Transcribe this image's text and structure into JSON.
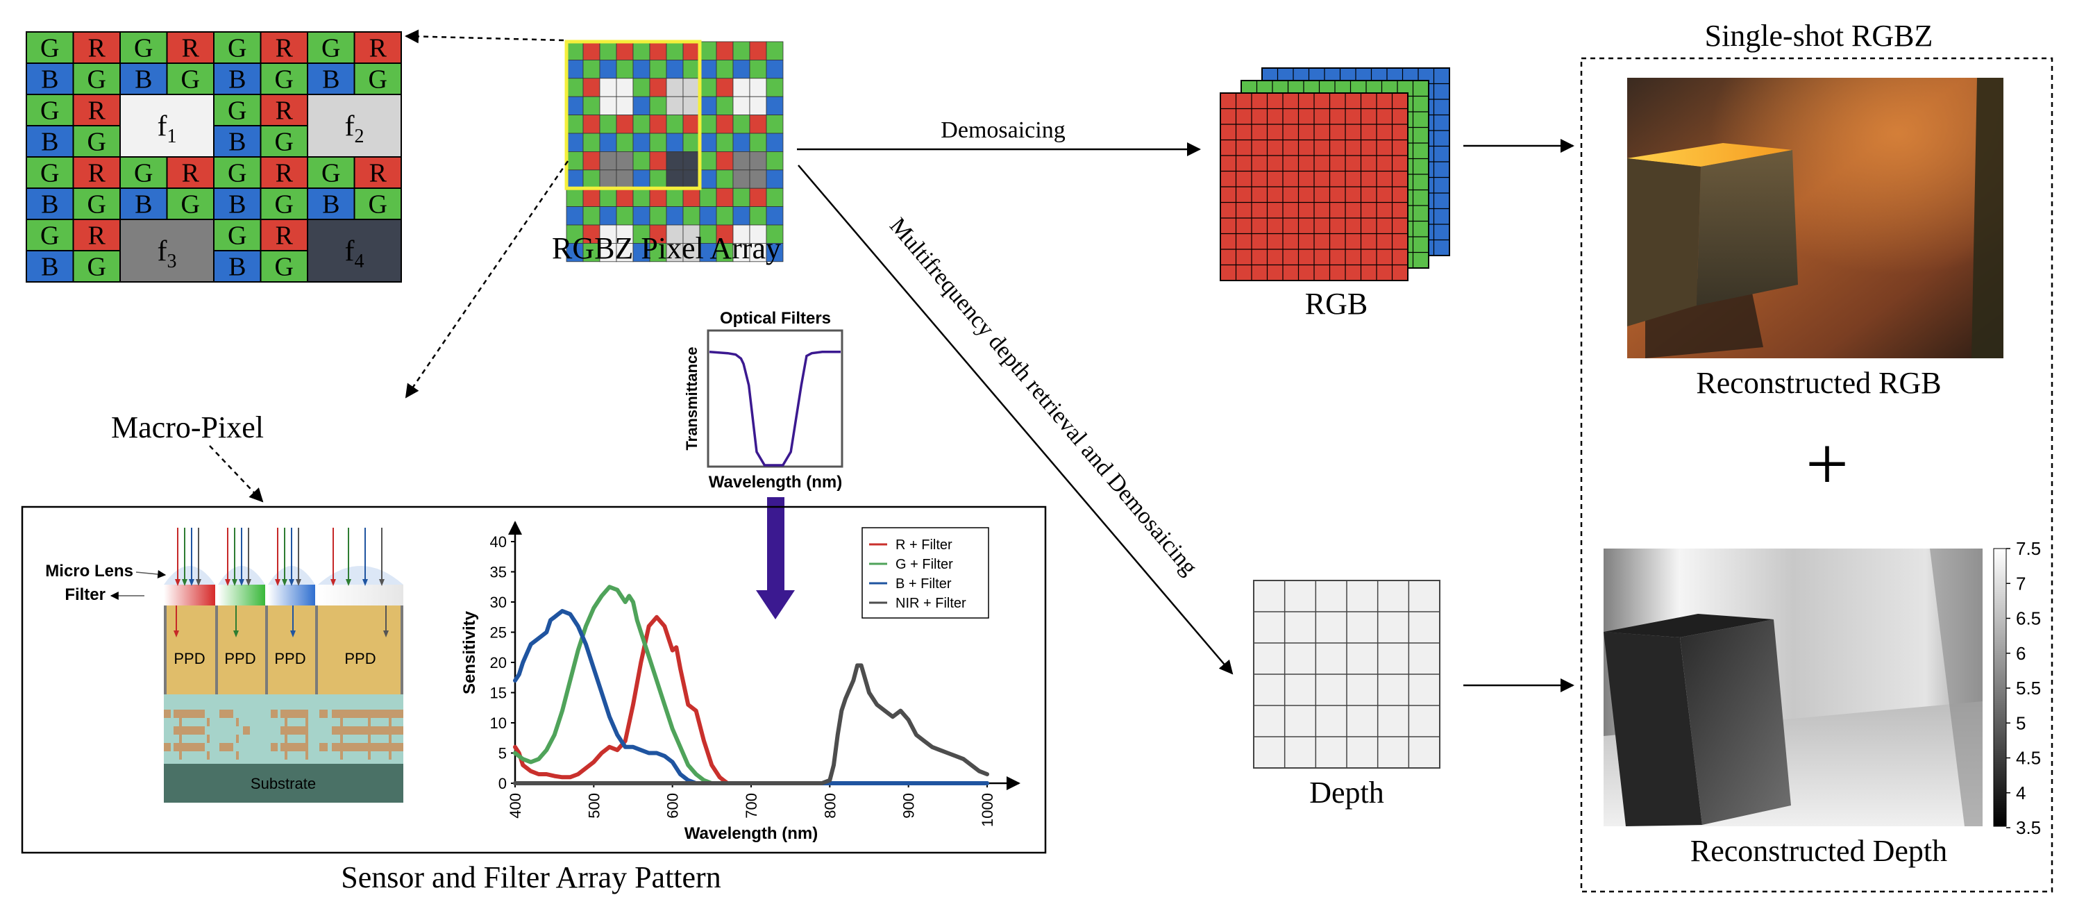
{
  "macro_pixel": {
    "title": "Macro-Pixel",
    "rows": [
      [
        "G",
        "R",
        "G",
        "R",
        "G",
        "R",
        "G",
        "R"
      ],
      [
        "B",
        "G",
        "B",
        "G",
        "B",
        "G",
        "B",
        "G"
      ],
      [
        "G",
        "R",
        "f1",
        "f1",
        "G",
        "R",
        "f2",
        "f2"
      ],
      [
        "B",
        "G",
        "f1",
        "f1",
        "B",
        "G",
        "f2",
        "f2"
      ],
      [
        "G",
        "R",
        "G",
        "R",
        "G",
        "R",
        "G",
        "R"
      ],
      [
        "B",
        "G",
        "B",
        "G",
        "B",
        "G",
        "B",
        "G"
      ],
      [
        "G",
        "R",
        "f3",
        "f3",
        "G",
        "R",
        "f4",
        "f4"
      ],
      [
        "B",
        "G",
        "f3",
        "f3",
        "B",
        "G",
        "f4",
        "f4"
      ]
    ],
    "filters": [
      {
        "id": "f1",
        "base": "f",
        "sub": "1"
      },
      {
        "id": "f2",
        "base": "f",
        "sub": "2"
      },
      {
        "id": "f3",
        "base": "f",
        "sub": "3"
      },
      {
        "id": "f4",
        "base": "f",
        "sub": "4"
      }
    ]
  },
  "colors": {
    "G": "#5bbf4a",
    "R": "#d94136",
    "B": "#2f6fcc",
    "f1": "#f2f2f2",
    "f2": "#d4d4d4",
    "f3": "#7f7f7f",
    "f4": "#3d4350",
    "highlight": "#f4ef3c",
    "pd_orange": "#e0bd6a",
    "metal": "#c49a6c",
    "interlayer": "#a6d3ca",
    "substrate": "#4a7166",
    "filter_curve": "#3b1990",
    "arrow_purple": "#3b1990",
    "nir": "#4d4d4d"
  },
  "pixel_array": {
    "label": "RGBZ Pixel Array"
  },
  "demosaicing": {
    "label": "Demosaicing"
  },
  "depth_path": {
    "label": "Multifrequency depth retrieval and  Demosaicing"
  },
  "rgb": {
    "label": "RGB"
  },
  "depth": {
    "label": "Depth"
  },
  "single_shot": {
    "title": "Single-shot RGBZ",
    "rgb_label": "Reconstructed RGB",
    "plus": "+",
    "depth_label": "Reconstructed Depth",
    "colorbar_ticks": [
      "7.5",
      "7",
      "6.5",
      "6",
      "5.5",
      "5",
      "4.5",
      "4",
      "3.5"
    ]
  },
  "optical_filters": {
    "title": "Optical Filters",
    "ylabel": "Transmittance",
    "xlabel": "Wavelength (nm)"
  },
  "sensor": {
    "title": "Sensor and Filter Array Pattern",
    "micro_lens": "Micro Lens",
    "filter": "Filter",
    "ppd": [
      "PPD",
      "PPD",
      "PPD",
      "PPD"
    ],
    "substrate": "Substrate"
  },
  "chart_data": {
    "type": "line",
    "xlabel": "Wavelength (nm)",
    "ylabel": "Sensitivity",
    "xlim": [
      400,
      1000
    ],
    "ylim": [
      0,
      40
    ],
    "xticks": [
      "400",
      "500",
      "600",
      "700",
      "800",
      "900",
      "1000"
    ],
    "yticks": [
      "0",
      "5",
      "10",
      "15",
      "20",
      "25",
      "30",
      "35",
      "40"
    ],
    "series": [
      {
        "name": "R + Filter",
        "color": "#c9302c",
        "x": [
          400,
          405,
          410,
          420,
          430,
          440,
          450,
          460,
          470,
          480,
          490,
          500,
          510,
          520,
          530,
          540,
          550,
          560,
          570,
          580,
          590,
          600,
          605,
          610,
          620,
          630,
          640,
          650,
          660,
          665,
          670,
          675,
          680,
          700,
          800,
          900,
          1000
        ],
        "y": [
          6,
          5,
          3,
          2,
          1.5,
          1.5,
          1.2,
          1,
          1,
          1.5,
          2.5,
          3.5,
          5,
          6,
          5.5,
          7,
          13,
          20,
          26,
          27.5,
          26,
          22,
          22.5,
          19,
          13,
          12,
          7,
          3,
          1,
          0.5,
          0,
          0,
          0,
          0,
          0,
          0,
          0
        ]
      },
      {
        "name": "G + Filter",
        "color": "#4fa35a",
        "x": [
          400,
          410,
          420,
          430,
          440,
          450,
          460,
          470,
          480,
          490,
          500,
          510,
          520,
          530,
          540,
          545,
          550,
          555,
          560,
          565,
          570,
          580,
          590,
          600,
          610,
          620,
          630,
          640,
          650,
          660,
          670,
          680,
          700,
          800,
          900,
          1000
        ],
        "y": [
          5,
          4,
          3.5,
          4,
          5.5,
          8,
          12,
          17,
          22,
          26,
          29,
          31,
          32.5,
          32,
          30,
          31,
          30,
          27,
          25,
          23,
          21,
          17,
          13,
          9,
          6,
          3,
          1.5,
          0.5,
          0,
          0,
          0,
          0,
          0,
          0,
          0,
          0
        ]
      },
      {
        "name": "B + Filter",
        "color": "#1f54a0",
        "x": [
          400,
          405,
          410,
          420,
          430,
          440,
          445,
          450,
          455,
          460,
          470,
          480,
          490,
          500,
          510,
          520,
          530,
          540,
          550,
          560,
          570,
          580,
          590,
          600,
          610,
          620,
          630,
          640,
          650,
          680,
          700,
          800,
          900,
          1000
        ],
        "y": [
          17,
          18,
          20,
          23,
          24,
          25,
          27,
          27.5,
          28,
          28.5,
          28,
          26,
          23,
          19,
          15,
          11,
          8,
          6,
          6,
          5.5,
          5,
          5,
          4.5,
          3.5,
          1.5,
          0.5,
          0,
          0,
          0,
          0,
          0,
          0,
          0,
          0
        ]
      },
      {
        "name": "NIR + Filter",
        "color": "#4d4d4d",
        "x": [
          400,
          700,
          780,
          790,
          800,
          805,
          810,
          815,
          820,
          830,
          835,
          840,
          850,
          860,
          870,
          880,
          890,
          900,
          910,
          920,
          930,
          940,
          950,
          960,
          970,
          980,
          990,
          1000
        ],
        "y": [
          0,
          0,
          0,
          0,
          0.5,
          3,
          8,
          12,
          14,
          17,
          19.5,
          19.5,
          15,
          13,
          12,
          11,
          12,
          10.5,
          8,
          7,
          6,
          5.5,
          5,
          4.5,
          4,
          3,
          2,
          1.5
        ]
      }
    ],
    "legend_position": "top-right",
    "filter_curve": {
      "type": "line",
      "x": [
        0,
        0.14,
        0.2,
        0.24,
        0.26,
        0.3,
        0.36,
        0.42,
        0.5,
        0.56,
        0.62,
        0.7,
        0.74,
        0.78,
        0.86,
        1
      ],
      "y": [
        0.85,
        0.84,
        0.83,
        0.8,
        0.76,
        0.6,
        0.1,
        0.0,
        0.0,
        0.0,
        0.1,
        0.6,
        0.82,
        0.84,
        0.85,
        0.85
      ]
    }
  }
}
